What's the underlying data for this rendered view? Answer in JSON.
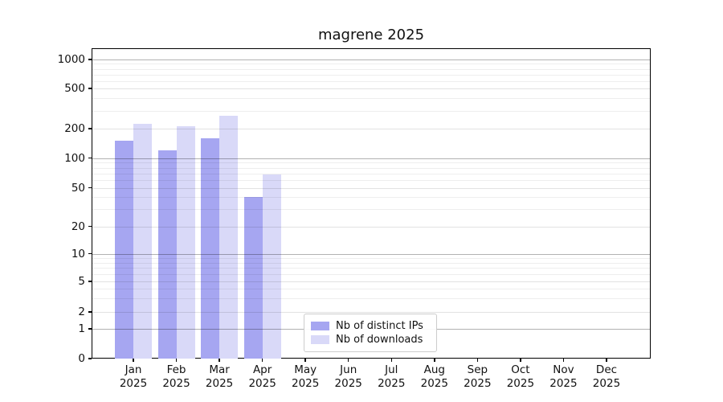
{
  "title": "magrene 2025",
  "legend": {
    "items": [
      {
        "key": "ips",
        "label": "Nb of distinct IPs"
      },
      {
        "key": "downloads",
        "label": "Nb of downloads"
      }
    ]
  },
  "chart_data": {
    "type": "bar",
    "title": "magrene 2025",
    "categories": [
      "Jan 2025",
      "Feb 2025",
      "Mar 2025",
      "Apr 2025",
      "May 2025",
      "Jun 2025",
      "Jul 2025",
      "Aug 2025",
      "Sep 2025",
      "Oct 2025",
      "Nov 2025",
      "Dec 2025"
    ],
    "x_tick_months": [
      "Jan",
      "Feb",
      "Mar",
      "Apr",
      "May",
      "Jun",
      "Jul",
      "Aug",
      "Sep",
      "Oct",
      "Nov",
      "Dec"
    ],
    "x_tick_year": "2025",
    "series": [
      {
        "key": "ips",
        "name": "Nb of distinct IPs",
        "color": "#a6a6f1",
        "values": [
          150,
          120,
          158,
          40,
          null,
          null,
          null,
          null,
          null,
          null,
          null,
          null
        ]
      },
      {
        "key": "downloads",
        "name": "Nb of downloads",
        "color": "#d9d9f8",
        "values": [
          225,
          210,
          270,
          68,
          null,
          null,
          null,
          null,
          null,
          null,
          null,
          null
        ]
      }
    ],
    "y_axis": {
      "scale": "symlog",
      "tick_values": [
        1000,
        500,
        200,
        100,
        50,
        20,
        10,
        5,
        2,
        1,
        0
      ],
      "tick_labels": [
        "1000",
        "500",
        "200",
        "100",
        "50",
        "20",
        "10",
        "5",
        "2",
        "1",
        "0"
      ],
      "major_gridline_values": [
        1,
        10,
        100,
        1000
      ],
      "minor_labeled_gridline_values": [
        2,
        5,
        20,
        50,
        200,
        500
      ],
      "minor_gridline_values": [
        3,
        4,
        6,
        7,
        8,
        9,
        30,
        40,
        60,
        70,
        80,
        90,
        300,
        400,
        600,
        700,
        800,
        900
      ],
      "ylim": [
        0,
        1400
      ]
    },
    "grid": true,
    "legend_position": "lower-center-left"
  }
}
